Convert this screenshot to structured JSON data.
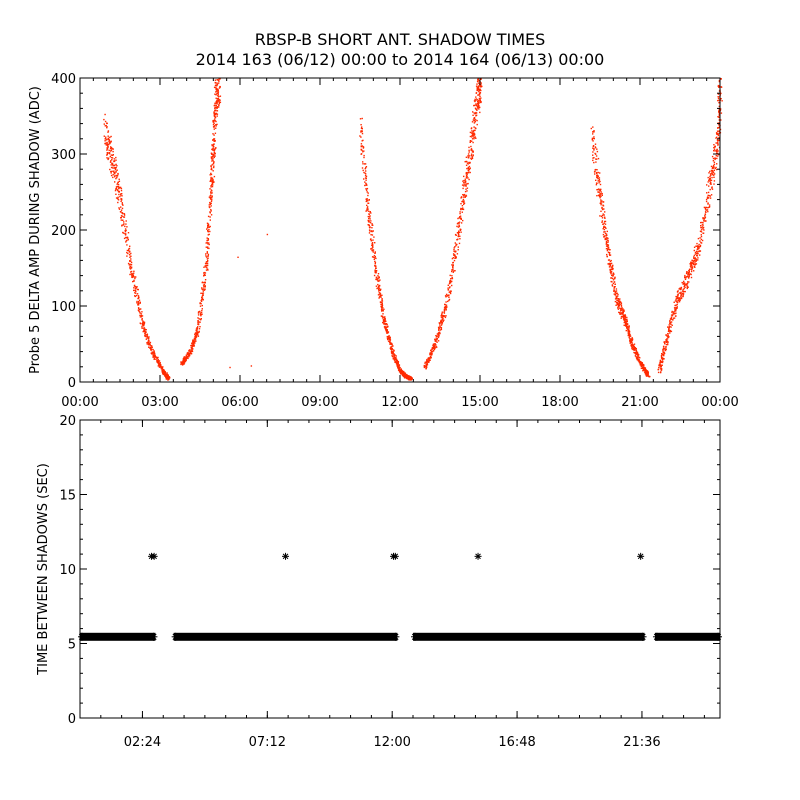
{
  "title_line1": "RBSP-B SHORT ANT. SHADOW TIMES",
  "title_line2": "2014 163 (06/12) 00:00 to 2014 164 (06/13) 00:00",
  "colors": {
    "top_points": "#ff2a00",
    "bottom_points": "#000000",
    "axes": "#000000"
  },
  "chart_data": [
    {
      "type": "scatter",
      "ylabel": "Probe 5 DELTA AMP DURING SHADOW (ADC)",
      "xlabel": "",
      "xlim": [
        0,
        24
      ],
      "ylim": [
        0,
        400
      ],
      "x_tick_labels": [
        "00:00",
        "03:00",
        "06:00",
        "09:00",
        "12:00",
        "15:00",
        "18:00",
        "21:00",
        "00:00"
      ],
      "x_ticks": [
        0,
        3,
        6,
        9,
        12,
        15,
        18,
        21,
        24
      ],
      "y_ticks": [
        0,
        100,
        200,
        300,
        400
      ],
      "point_color": "#ff2a00",
      "segments": [
        {
          "x": [
            0.9,
            1.2,
            1.5,
            1.9,
            2.3,
            2.7,
            3.1,
            3.3
          ],
          "y": [
            330,
            290,
            240,
            150,
            80,
            40,
            15,
            5
          ]
        },
        {
          "x": [
            3.8,
            4.1,
            4.4,
            4.7,
            4.9,
            5.0,
            5.1,
            5.2
          ],
          "y": [
            25,
            40,
            70,
            150,
            250,
            320,
            380,
            400
          ]
        },
        {
          "x": [
            10.5,
            10.8,
            11.1,
            11.4,
            11.7,
            12.0,
            12.2,
            12.4
          ],
          "y": [
            330,
            220,
            140,
            80,
            40,
            15,
            8,
            5
          ]
        },
        {
          "x": [
            12.9,
            13.3,
            13.7,
            14.1,
            14.4,
            14.7,
            14.9,
            15.0
          ],
          "y": [
            20,
            50,
            100,
            180,
            260,
            320,
            380,
            400
          ]
        },
        {
          "x": [
            19.2,
            19.5,
            19.8,
            20.1,
            20.4,
            20.7,
            21.0,
            21.3
          ],
          "y": [
            320,
            240,
            170,
            110,
            85,
            50,
            25,
            8
          ]
        },
        {
          "x": [
            21.7,
            22.0,
            22.4,
            22.8,
            23.2,
            23.6,
            23.9,
            24.0
          ],
          "y": [
            15,
            60,
            110,
            140,
            180,
            260,
            320,
            400
          ]
        }
      ],
      "isolated_points": [
        {
          "x": 5.6,
          "y": 20
        },
        {
          "x": 6.4,
          "y": 22
        },
        {
          "x": 5.9,
          "y": 165
        },
        {
          "x": 7.0,
          "y": 195
        }
      ]
    },
    {
      "type": "scatter",
      "ylabel": "TIME BETWEEN SHADOWS (SEC)",
      "xlabel": "",
      "xlim": [
        0,
        24.6
      ],
      "ylim": [
        0,
        20
      ],
      "x_tick_labels": [
        "02:24",
        "07:12",
        "12:00",
        "16:48",
        "21:36"
      ],
      "x_ticks": [
        2.4,
        7.2,
        12.0,
        16.8,
        21.6
      ],
      "y_ticks": [
        0,
        5,
        10,
        15,
        20
      ],
      "point_color": "#000000",
      "baseline_value": 5.45,
      "baseline_ranges": [
        [
          0.0,
          2.9
        ],
        [
          3.6,
          12.2
        ],
        [
          12.8,
          21.7
        ],
        [
          22.1,
          24.6
        ]
      ],
      "high_points": [
        {
          "x": 2.75,
          "y": 10.85
        },
        {
          "x": 2.85,
          "y": 10.85
        },
        {
          "x": 7.9,
          "y": 10.85
        },
        {
          "x": 12.05,
          "y": 10.85
        },
        {
          "x": 12.12,
          "y": 10.85
        },
        {
          "x": 15.3,
          "y": 10.85
        },
        {
          "x": 21.55,
          "y": 10.85
        }
      ]
    }
  ]
}
